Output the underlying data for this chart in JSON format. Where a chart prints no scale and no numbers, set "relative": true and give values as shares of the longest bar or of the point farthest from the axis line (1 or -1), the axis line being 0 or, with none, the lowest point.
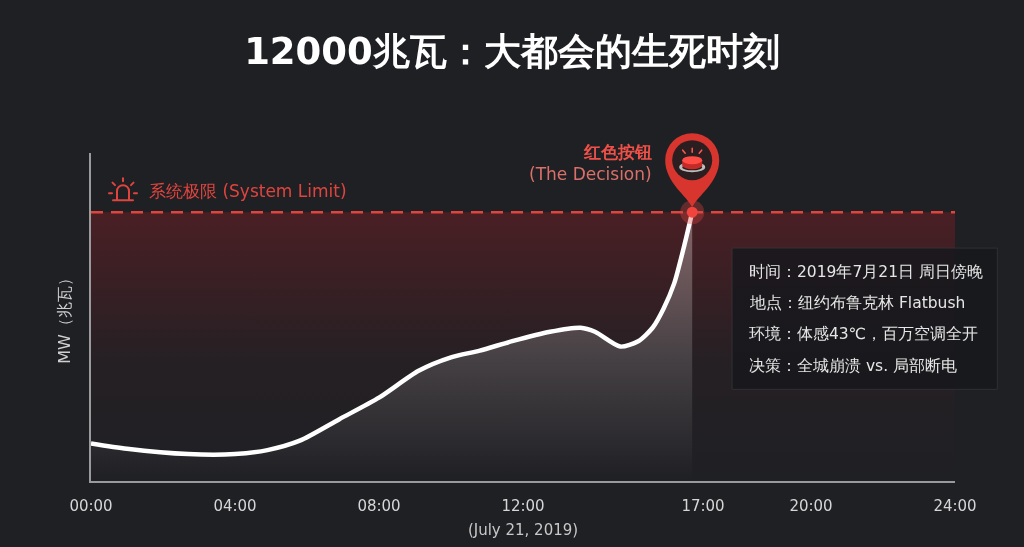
{
  "chart_data": {
    "type": "area",
    "title": "12000兆瓦：大都会的生死时刻",
    "xlabel": "(July 21, 2019)",
    "ylabel": "MW（兆瓦）",
    "x": [
      0,
      1,
      2.7,
      4,
      4.9,
      5.8,
      6.9,
      8,
      9.1,
      10,
      10.8,
      11.7,
      12.75,
      13.6,
      14,
      14.7,
      15.2,
      15.6,
      15.9,
      16.2,
      16.45,
      16.7
    ],
    "series": [
      {
        "color": "#ffffff",
        "values": [
          0.14,
          0.12,
          0.1,
          0.1,
          0.115,
          0.15,
          0.23,
          0.31,
          0.41,
          0.46,
          0.485,
          0.52,
          0.555,
          0.57,
          0.555,
          0.5,
          0.52,
          0.57,
          0.64,
          0.735,
          0.86,
          1
        ]
      }
    ],
    "relative": true,
    "xlim": [
      0,
      24
    ],
    "xticks": [
      {
        "value": 0,
        "label": "00:00"
      },
      {
        "value": 4,
        "label": "04:00"
      },
      {
        "value": 8,
        "label": "08:00"
      },
      {
        "value": 12,
        "label": "12:00"
      },
      {
        "value": 17,
        "label": "17:00"
      },
      {
        "value": 20,
        "label": "20:00"
      },
      {
        "value": 24,
        "label": "24:00"
      }
    ],
    "ref_lines": [
      {
        "axis": "y",
        "value": 1,
        "label": "系统极限 (System Limit)",
        "color": "#e0443e",
        "line_style": "dashed"
      }
    ],
    "bands": [
      {
        "axis": "y",
        "from": 0,
        "to": 1,
        "color": "#4a1f24"
      }
    ],
    "annotations": [
      "红色按钮\n(The Decision)",
      "时间：2019年7月21日 周日傍晚",
      "地点：纽约布鲁克林 Flatbush",
      "环境：体感43℃，百万空调全开",
      "决策：全城崩溃 vs. 局部断电"
    ]
  }
}
